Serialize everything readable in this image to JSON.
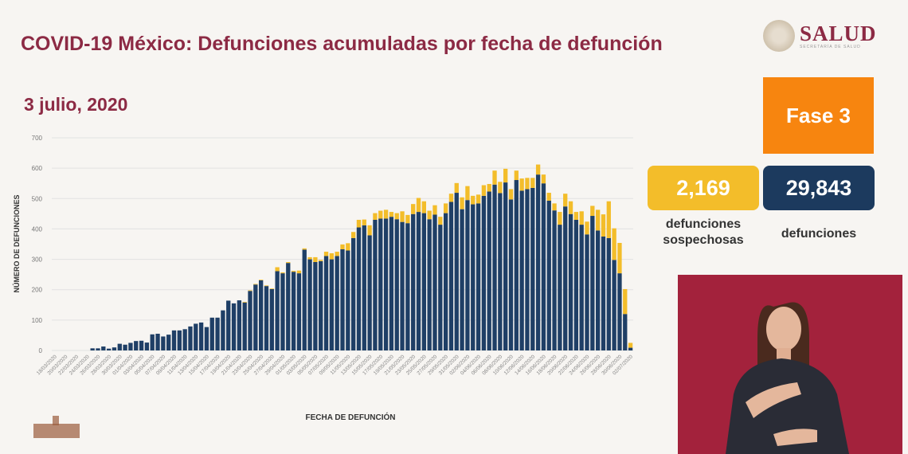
{
  "header": {
    "title": "COVID-19 México: Defunciones acumuladas por fecha de defunción",
    "date": "3 julio, 2020"
  },
  "logo": {
    "name": "SALUD",
    "subtitle": "SECRETARÍA DE SALUD"
  },
  "phase": {
    "label": "Fase 3",
    "color": "#f7850f"
  },
  "stats": {
    "suspected": {
      "value": "2,169",
      "label": "defunciones sospechosas",
      "color": "#f3bd2a"
    },
    "confirmed": {
      "value": "29,843",
      "label": "defunciones",
      "color": "#1c3a5e"
    }
  },
  "chart_data": {
    "type": "bar",
    "stacked": true,
    "xlabel": "FECHA DE DEFUNCIÓN",
    "ylabel": "NÚMERO DE DEFUNCIONES",
    "ylim": [
      0,
      700
    ],
    "yticks": [
      0,
      100,
      200,
      300,
      400,
      500,
      600,
      700
    ],
    "grid": true,
    "tick_label_every": 2,
    "categories": [
      "18/03/2020",
      "19/03/2020",
      "20/03/2020",
      "21/03/2020",
      "22/03/2020",
      "23/03/2020",
      "24/03/2020",
      "25/03/2020",
      "26/03/2020",
      "27/03/2020",
      "28/03/2020",
      "29/03/2020",
      "30/03/2020",
      "31/03/2020",
      "01/04/2020",
      "02/04/2020",
      "03/04/2020",
      "04/04/2020",
      "05/04/2020",
      "06/04/2020",
      "07/04/2020",
      "08/04/2020",
      "09/04/2020",
      "10/04/2020",
      "11/04/2020",
      "12/04/2020",
      "13/04/2020",
      "14/04/2020",
      "15/04/2020",
      "16/04/2020",
      "17/04/2020",
      "18/04/2020",
      "19/04/2020",
      "20/04/2020",
      "21/04/2020",
      "22/04/2020",
      "23/04/2020",
      "24/04/2020",
      "25/04/2020",
      "26/04/2020",
      "27/04/2020",
      "28/04/2020",
      "29/04/2020",
      "30/04/2020",
      "01/05/2020",
      "02/05/2020",
      "03/05/2020",
      "04/05/2020",
      "05/05/2020",
      "06/05/2020",
      "07/05/2020",
      "08/05/2020",
      "09/05/2020",
      "10/05/2020",
      "11/05/2020",
      "12/05/2020",
      "13/05/2020",
      "14/05/2020",
      "15/05/2020",
      "16/05/2020",
      "17/05/2020",
      "18/05/2020",
      "19/05/2020",
      "20/05/2020",
      "21/05/2020",
      "22/05/2020",
      "23/05/2020",
      "24/05/2020",
      "25/05/2020",
      "26/05/2020",
      "27/05/2020",
      "28/05/2020",
      "29/05/2020",
      "30/05/2020",
      "31/05/2020",
      "01/06/2020",
      "02/06/2020",
      "03/06/2020",
      "04/06/2020",
      "05/06/2020",
      "06/06/2020",
      "07/06/2020",
      "08/06/2020",
      "09/06/2020",
      "10/06/2020",
      "11/06/2020",
      "12/06/2020",
      "13/06/2020",
      "14/06/2020",
      "15/06/2020",
      "16/06/2020",
      "17/06/2020",
      "18/06/2020",
      "19/06/2020",
      "20/06/2020",
      "21/06/2020",
      "22/06/2020",
      "23/06/2020",
      "24/06/2020",
      "25/06/2020",
      "26/06/2020",
      "27/06/2020",
      "28/06/2020",
      "29/06/2020",
      "30/06/2020",
      "01/07/2020",
      "02/07/2020"
    ],
    "series": [
      {
        "key": "confirmed",
        "color": "#1f3f66",
        "values": [
          0,
          0,
          0,
          0,
          0,
          0,
          0,
          7,
          7,
          13,
          6,
          10,
          22,
          19,
          25,
          31,
          32,
          26,
          53,
          55,
          46,
          52,
          66,
          66,
          70,
          79,
          88,
          92,
          77,
          108,
          108,
          132,
          164,
          155,
          165,
          158,
          196,
          217,
          231,
          212,
          202,
          261,
          254,
          288,
          259,
          254,
          332,
          300,
          291,
          294,
          311,
          300,
          311,
          333,
          329,
          370,
          405,
          412,
          379,
          430,
          434,
          434,
          440,
          432,
          423,
          419,
          449,
          456,
          452,
          432,
          447,
          414,
          452,
          489,
          519,
          465,
          495,
          481,
          484,
          509,
          523,
          546,
          518,
          553,
          497,
          561,
          526,
          531,
          535,
          579,
          550,
          493,
          461,
          414,
          474,
          449,
          430,
          414,
          382,
          443,
          395,
          375,
          370,
          298,
          254,
          120,
          9
        ]
      },
      {
        "key": "suspected",
        "color": "#f3bd2a",
        "values": [
          0,
          0,
          0,
          0,
          0,
          0,
          0,
          0,
          0,
          0,
          0,
          0,
          0,
          0,
          0,
          0,
          0,
          0,
          0,
          0,
          0,
          0,
          0,
          0,
          0,
          0,
          0,
          0,
          0,
          0,
          0,
          0,
          0,
          0,
          0,
          2,
          2,
          2,
          2,
          2,
          2,
          13,
          3,
          3,
          3,
          9,
          4,
          7,
          16,
          4,
          14,
          20,
          14,
          16,
          24,
          20,
          25,
          19,
          33,
          22,
          26,
          29,
          16,
          20,
          35,
          27,
          33,
          46,
          39,
          28,
          31,
          26,
          32,
          27,
          32,
          39,
          46,
          28,
          29,
          35,
          25,
          46,
          37,
          45,
          34,
          31,
          40,
          37,
          33,
          33,
          29,
          26,
          23,
          42,
          42,
          42,
          26,
          44,
          42,
          33,
          68,
          73,
          121,
          104,
          100,
          82,
          16
        ]
      }
    ]
  }
}
